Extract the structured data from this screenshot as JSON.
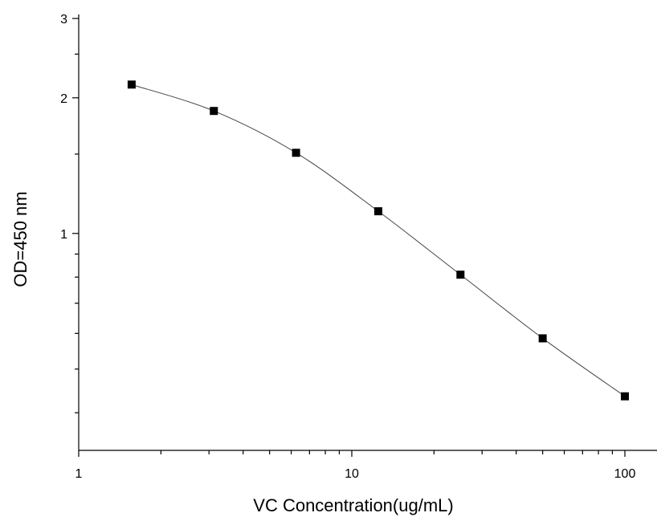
{
  "chart_data": {
    "type": "line",
    "xlabel": "VC Concentration(ug/mL)",
    "ylabel": "OD=450 nm",
    "x_scale": "log",
    "y_scale": "log",
    "xlim": [
      1,
      100
    ],
    "ylim": [
      0.33,
      3
    ],
    "x_ticks": [
      {
        "value": 1,
        "label": "1"
      },
      {
        "value": 10,
        "label": "10"
      },
      {
        "value": 100,
        "label": "100"
      }
    ],
    "y_ticks": [
      {
        "value": 1,
        "label": "1"
      },
      {
        "value": 2,
        "label": "2"
      },
      {
        "value": 3,
        "label": "3"
      }
    ],
    "grid": false,
    "series": [
      {
        "marker": "square",
        "color": "#000000",
        "line_color": "#444444",
        "x": [
          1.5625,
          3.125,
          6.25,
          12.5,
          25,
          50,
          100
        ],
        "y": [
          2.14,
          1.87,
          1.51,
          1.12,
          0.81,
          0.585,
          0.435
        ]
      }
    ]
  }
}
